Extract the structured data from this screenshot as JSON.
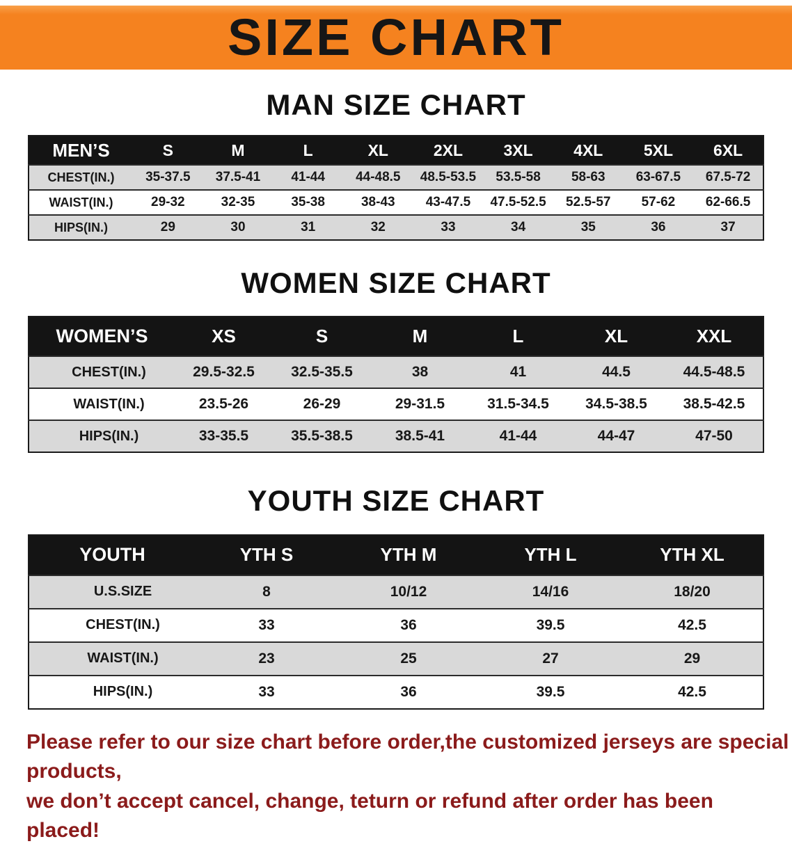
{
  "banner": {
    "title": "SIZE CHART"
  },
  "colors": {
    "banner_bg": "#f5821f",
    "banner_text": "#161616",
    "table_header_bg": "#141414",
    "table_header_text": "#ffffff",
    "row_shaded_bg": "#d9d9d9",
    "row_plain_bg": "#ffffff",
    "footer_text": "#8b1b1b"
  },
  "sections": [
    {
      "heading": "MAN SIZE CHART",
      "table": {
        "header": [
          "MEN’S",
          "S",
          "M",
          "L",
          "XL",
          "2XL",
          "3XL",
          "4XL",
          "5XL",
          "6XL"
        ],
        "rows": [
          [
            "CHEST(IN.)",
            "35-37.5",
            "37.5-41",
            "41-44",
            "44-48.5",
            "48.5-53.5",
            "53.5-58",
            "58-63",
            "63-67.5",
            "67.5-72"
          ],
          [
            "WAIST(IN.)",
            "29-32",
            "32-35",
            "35-38",
            "38-43",
            "43-47.5",
            "47.5-52.5",
            "52.5-57",
            "57-62",
            "62-66.5"
          ],
          [
            "HIPS(IN.)",
            "29",
            "30",
            "31",
            "32",
            "33",
            "34",
            "35",
            "36",
            "37"
          ]
        ]
      }
    },
    {
      "heading": "WOMEN SIZE CHART",
      "table": {
        "header": [
          "WOMEN’S",
          "XS",
          "S",
          "M",
          "L",
          "XL",
          "XXL"
        ],
        "rows": [
          [
            "CHEST(IN.)",
            "29.5-32.5",
            "32.5-35.5",
            "38",
            "41",
            "44.5",
            "44.5-48.5"
          ],
          [
            "WAIST(IN.)",
            "23.5-26",
            "26-29",
            "29-31.5",
            "31.5-34.5",
            "34.5-38.5",
            "38.5-42.5"
          ],
          [
            "HIPS(IN.)",
            "33-35.5",
            "35.5-38.5",
            "38.5-41",
            "41-44",
            "44-47",
            "47-50"
          ]
        ]
      }
    },
    {
      "heading": "YOUTH SIZE CHART",
      "table": {
        "header": [
          "YOUTH",
          "YTH S",
          "YTH M",
          "YTH L",
          "YTH XL"
        ],
        "rows": [
          [
            "U.S.SIZE",
            "8",
            "10/12",
            "14/16",
            "18/20"
          ],
          [
            "CHEST(IN.)",
            "33",
            "36",
            "39.5",
            "42.5"
          ],
          [
            "WAIST(IN.)",
            "23",
            "25",
            "27",
            "29"
          ],
          [
            "HIPS(IN.)",
            "33",
            "36",
            "39.5",
            "42.5"
          ]
        ]
      }
    }
  ],
  "footer": {
    "line1": "Please refer to our size chart before order,the customized jerseys are special products,",
    "line2": "we don’t accept cancel, change, teturn or refund after order has been placed!"
  }
}
